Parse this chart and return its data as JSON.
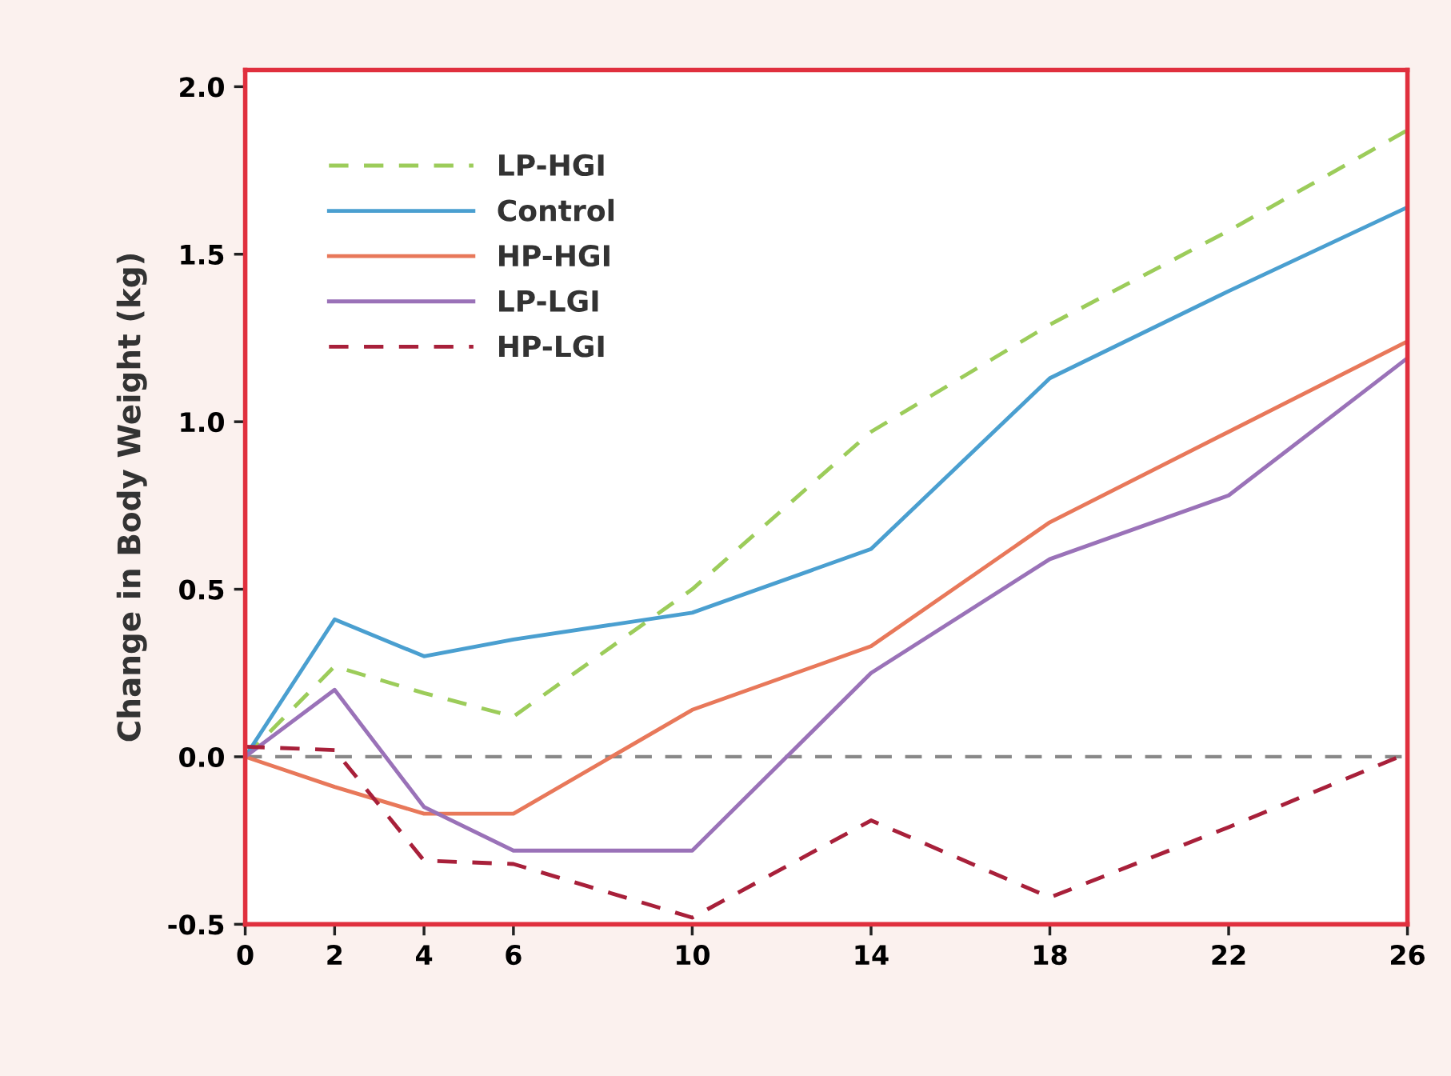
{
  "chart_data": {
    "type": "line",
    "ylabel": "Change in Body Weight (kg)",
    "x": [
      0,
      2,
      4,
      6,
      10,
      14,
      18,
      22,
      26
    ],
    "series": [
      {
        "name": "LP-HGI",
        "color": "#9ccc5a",
        "line_style": "dashed",
        "values": [
          0,
          0.27,
          0.19,
          0.12,
          0.5,
          0.97,
          1.29,
          1.57,
          1.87
        ]
      },
      {
        "name": "Control",
        "color": "#4a9fd0",
        "line_style": "solid",
        "values": [
          0,
          0.41,
          0.3,
          0.35,
          0.43,
          0.62,
          1.13,
          1.39,
          1.64
        ]
      },
      {
        "name": "HP-HGI",
        "color": "#e8785a",
        "line_style": "solid",
        "values": [
          0,
          -0.09,
          -0.17,
          -0.17,
          0.14,
          0.33,
          0.7,
          0.97,
          1.24
        ]
      },
      {
        "name": "LP-LGI",
        "color": "#9a72b8",
        "line_style": "solid",
        "values": [
          0,
          0.2,
          -0.15,
          -0.28,
          -0.28,
          0.25,
          0.59,
          0.78,
          1.19
        ]
      },
      {
        "name": "HP-LGI",
        "color": "#a8203a",
        "line_style": "dashed",
        "values": [
          0.03,
          0.02,
          -0.31,
          -0.32,
          -0.48,
          -0.19,
          -0.42,
          -0.21,
          0.01
        ]
      }
    ],
    "xlim": [
      0,
      26
    ],
    "xticks": [
      0,
      2,
      4,
      6,
      10,
      14,
      18,
      22,
      26
    ],
    "ylim": [
      -0.5,
      2.05
    ],
    "yticks": [
      {
        "value": -0.5,
        "label": "-0.5"
      },
      {
        "value": 0,
        "label": "0.0"
      },
      {
        "value": 0.5,
        "label": "0.5"
      },
      {
        "value": 1.0,
        "label": "1.0"
      },
      {
        "value": 1.5,
        "label": "1.5"
      },
      {
        "value": 2.0,
        "label": "2.0"
      }
    ],
    "ref_lines": [
      {
        "axis": "y",
        "value": 0,
        "color": "#888888",
        "line_style": "dashed"
      }
    ],
    "grid": false,
    "legend": "top left",
    "marker": "none"
  }
}
